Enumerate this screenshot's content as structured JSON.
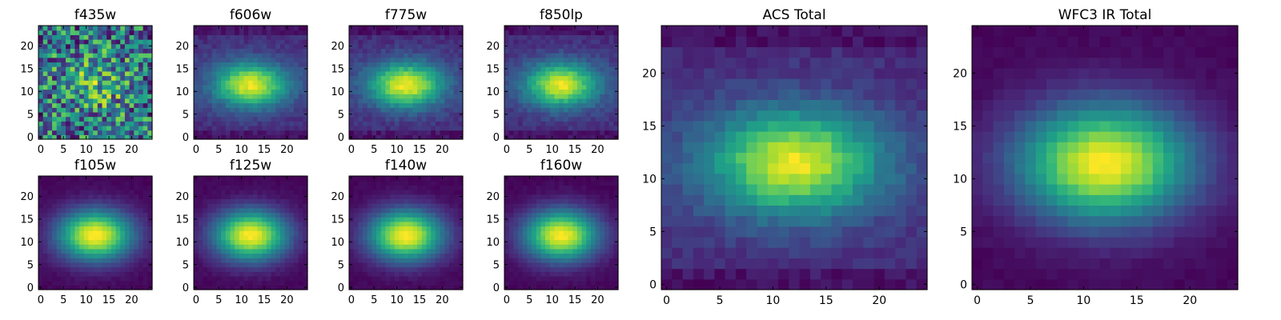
{
  "chart_data": [
    {
      "type": "heatmap",
      "title": "f435w",
      "colormap": "viridis",
      "profile": "noisy",
      "grid": false,
      "seed": 7,
      "xlim": [
        -0.5,
        24.5
      ],
      "ylim": [
        -0.5,
        24.5
      ],
      "xticks": [
        "0",
        "5",
        "10",
        "15",
        "20"
      ],
      "yticks": [
        "0",
        "5",
        "10",
        "15",
        "20"
      ]
    },
    {
      "type": "heatmap",
      "title": "f606w",
      "colormap": "viridis",
      "profile": "galaxy",
      "grid": false,
      "seed": 11,
      "xlim": [
        -0.5,
        24.5
      ],
      "ylim": [
        -0.5,
        24.5
      ],
      "xticks": [
        "0",
        "5",
        "10",
        "15",
        "20"
      ],
      "yticks": [
        "0",
        "5",
        "10",
        "15",
        "20"
      ]
    },
    {
      "type": "heatmap",
      "title": "f775w",
      "colormap": "viridis",
      "profile": "galaxy",
      "grid": false,
      "seed": 13,
      "xlim": [
        -0.5,
        24.5
      ],
      "ylim": [
        -0.5,
        24.5
      ],
      "xticks": [
        "0",
        "5",
        "10",
        "15",
        "20"
      ],
      "yticks": [
        "0",
        "5",
        "10",
        "15",
        "20"
      ]
    },
    {
      "type": "heatmap",
      "title": "f850lp",
      "colormap": "viridis",
      "profile": "galaxy",
      "grid": false,
      "seed": 17,
      "xlim": [
        -0.5,
        24.5
      ],
      "ylim": [
        -0.5,
        24.5
      ],
      "xticks": [
        "0",
        "5",
        "10",
        "15",
        "20"
      ],
      "yticks": [
        "0",
        "5",
        "10",
        "15",
        "20"
      ]
    },
    {
      "type": "heatmap",
      "title": "f105w",
      "colormap": "viridis",
      "profile": "smooth",
      "grid": false,
      "seed": 19,
      "xlim": [
        -0.5,
        24.5
      ],
      "ylim": [
        -0.5,
        24.5
      ],
      "xticks": [
        "0",
        "5",
        "10",
        "15",
        "20"
      ],
      "yticks": [
        "0",
        "5",
        "10",
        "15",
        "20"
      ]
    },
    {
      "type": "heatmap",
      "title": "f125w",
      "colormap": "viridis",
      "profile": "smooth",
      "grid": false,
      "seed": 23,
      "xlim": [
        -0.5,
        24.5
      ],
      "ylim": [
        -0.5,
        24.5
      ],
      "xticks": [
        "0",
        "5",
        "10",
        "15",
        "20"
      ],
      "yticks": [
        "0",
        "5",
        "10",
        "15",
        "20"
      ]
    },
    {
      "type": "heatmap",
      "title": "f140w",
      "colormap": "viridis",
      "profile": "smooth",
      "grid": false,
      "seed": 29,
      "xlim": [
        -0.5,
        24.5
      ],
      "ylim": [
        -0.5,
        24.5
      ],
      "xticks": [
        "0",
        "5",
        "10",
        "15",
        "20"
      ],
      "yticks": [
        "0",
        "5",
        "10",
        "15",
        "20"
      ]
    },
    {
      "type": "heatmap",
      "title": "f160w",
      "colormap": "viridis",
      "profile": "smooth",
      "grid": false,
      "seed": 31,
      "xlim": [
        -0.5,
        24.5
      ],
      "ylim": [
        -0.5,
        24.5
      ],
      "xticks": [
        "0",
        "5",
        "10",
        "15",
        "20"
      ],
      "yticks": [
        "0",
        "5",
        "10",
        "15",
        "20"
      ]
    },
    {
      "type": "heatmap",
      "title": "ACS Total",
      "colormap": "viridis",
      "profile": "galaxy",
      "grid": false,
      "seed": 37,
      "xlim": [
        -0.5,
        24.5
      ],
      "ylim": [
        -0.5,
        24.5
      ],
      "xticks": [
        "0",
        "5",
        "10",
        "15",
        "20"
      ],
      "yticks": [
        "0",
        "5",
        "10",
        "15",
        "20"
      ]
    },
    {
      "type": "heatmap",
      "title": "WFC3 IR Total",
      "colormap": "viridis",
      "profile": "smooth",
      "grid": false,
      "seed": 41,
      "xlim": [
        -0.5,
        24.5
      ],
      "ylim": [
        -0.5,
        24.5
      ],
      "xticks": [
        "0",
        "5",
        "10",
        "15",
        "20"
      ],
      "yticks": [
        "0",
        "5",
        "10",
        "15",
        "20"
      ]
    }
  ]
}
